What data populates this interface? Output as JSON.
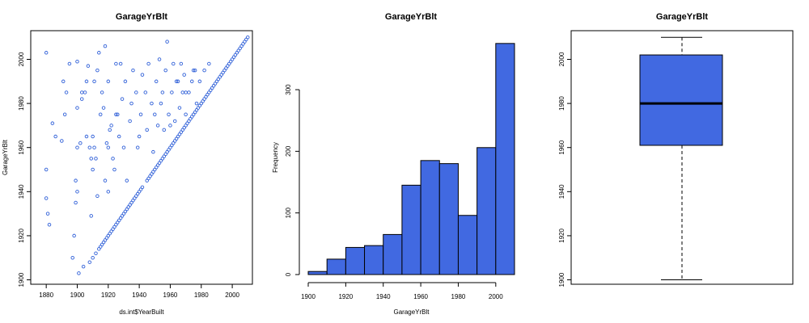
{
  "chart_data": [
    {
      "type": "scatter",
      "title": "GarageYrBlt",
      "xlabel": "ds.int$YearBuilt",
      "ylabel": "GarageYrBlt",
      "xlim": [
        1870,
        2013
      ],
      "ylim": [
        1898,
        2013
      ],
      "xticks": [
        1880,
        1900,
        1920,
        1940,
        1960,
        1980,
        2000
      ],
      "yticks": [
        1900,
        1920,
        1940,
        1960,
        1980,
        2000
      ],
      "grid": false,
      "marker": "open-circle",
      "color": "#3060d8",
      "points": [
        [
          1880,
          1950
        ],
        [
          1880,
          1937
        ],
        [
          1880,
          2003
        ],
        [
          1881,
          1930
        ],
        [
          1882,
          1925
        ],
        [
          1884,
          1971
        ],
        [
          1886,
          1965
        ],
        [
          1890,
          1963
        ],
        [
          1891,
          1990
        ],
        [
          1892,
          1975
        ],
        [
          1893,
          1985
        ],
        [
          1895,
          1998
        ],
        [
          1897,
          1910
        ],
        [
          1898,
          1920
        ],
        [
          1899,
          1935
        ],
        [
          1899,
          1945
        ],
        [
          1900,
          1960
        ],
        [
          1900,
          1940
        ],
        [
          1900,
          1978
        ],
        [
          1900,
          1999
        ],
        [
          1901,
          1903
        ],
        [
          1902,
          1962
        ],
        [
          1903,
          1982
        ],
        [
          1904,
          1906
        ],
        [
          1905,
          1985
        ],
        [
          1906,
          1990
        ],
        [
          1907,
          1997
        ],
        [
          1908,
          1908
        ],
        [
          1909,
          1955
        ],
        [
          1909,
          1929
        ],
        [
          1910,
          1950
        ],
        [
          1910,
          1965
        ],
        [
          1910,
          1910
        ],
        [
          1911,
          1990
        ],
        [
          1912,
          1912
        ],
        [
          1913,
          1938
        ],
        [
          1914,
          1914
        ],
        [
          1915,
          1915
        ],
        [
          1915,
          1975
        ],
        [
          1916,
          1916
        ],
        [
          1917,
          1917
        ],
        [
          1918,
          1945
        ],
        [
          1918,
          1918
        ],
        [
          1919,
          1919
        ],
        [
          1920,
          1920
        ],
        [
          1920,
          1940
        ],
        [
          1920,
          1960
        ],
        [
          1920,
          1990
        ],
        [
          1921,
          1921
        ],
        [
          1922,
          1922
        ],
        [
          1922,
          1970
        ],
        [
          1923,
          1923
        ],
        [
          1924,
          1924
        ],
        [
          1924,
          1950
        ],
        [
          1925,
          1925
        ],
        [
          1925,
          1975
        ],
        [
          1926,
          1926
        ],
        [
          1927,
          1927
        ],
        [
          1928,
          1928
        ],
        [
          1928,
          1998
        ],
        [
          1929,
          1929
        ],
        [
          1930,
          1930
        ],
        [
          1930,
          1960
        ],
        [
          1931,
          1931
        ],
        [
          1932,
          1932
        ],
        [
          1933,
          1933
        ],
        [
          1934,
          1934
        ],
        [
          1935,
          1935
        ],
        [
          1935,
          1980
        ],
        [
          1936,
          1936
        ],
        [
          1937,
          1937
        ],
        [
          1938,
          1938
        ],
        [
          1939,
          1939
        ],
        [
          1940,
          1940
        ],
        [
          1940,
          1965
        ],
        [
          1941,
          1941
        ],
        [
          1942,
          1942
        ],
        [
          1945,
          1945
        ],
        [
          1946,
          1946
        ],
        [
          1947,
          1947
        ],
        [
          1948,
          1948
        ],
        [
          1949,
          1949
        ],
        [
          1950,
          1950
        ],
        [
          1950,
          1975
        ],
        [
          1951,
          1951
        ],
        [
          1952,
          1952
        ],
        [
          1953,
          1953
        ],
        [
          1954,
          1954
        ],
        [
          1955,
          1955
        ],
        [
          1955,
          1985
        ],
        [
          1956,
          1956
        ],
        [
          1957,
          1957
        ],
        [
          1958,
          1958
        ],
        [
          1959,
          1959
        ],
        [
          1960,
          1960
        ],
        [
          1960,
          1970
        ],
        [
          1961,
          1961
        ],
        [
          1962,
          1962
        ],
        [
          1963,
          1963
        ],
        [
          1964,
          1964
        ],
        [
          1965,
          1965
        ],
        [
          1965,
          1990
        ],
        [
          1966,
          1966
        ],
        [
          1967,
          1967
        ],
        [
          1968,
          1968
        ],
        [
          1969,
          1969
        ],
        [
          1970,
          1970
        ],
        [
          1970,
          1985
        ],
        [
          1971,
          1971
        ],
        [
          1972,
          1972
        ],
        [
          1973,
          1973
        ],
        [
          1974,
          1974
        ],
        [
          1975,
          1975
        ],
        [
          1975,
          1995
        ],
        [
          1976,
          1976
        ],
        [
          1977,
          1977
        ],
        [
          1978,
          1978
        ],
        [
          1979,
          1979
        ],
        [
          1980,
          1980
        ],
        [
          1981,
          1981
        ],
        [
          1982,
          1982
        ],
        [
          1983,
          1983
        ],
        [
          1984,
          1984
        ],
        [
          1985,
          1985
        ],
        [
          1986,
          1986
        ],
        [
          1987,
          1987
        ],
        [
          1988,
          1988
        ],
        [
          1989,
          1989
        ],
        [
          1990,
          1990
        ],
        [
          1991,
          1991
        ],
        [
          1992,
          1992
        ],
        [
          1993,
          1993
        ],
        [
          1994,
          1994
        ],
        [
          1995,
          1995
        ],
        [
          1996,
          1996
        ],
        [
          1997,
          1997
        ],
        [
          1998,
          1998
        ],
        [
          1999,
          1999
        ],
        [
          2000,
          2000
        ],
        [
          2001,
          2001
        ],
        [
          2002,
          2002
        ],
        [
          2003,
          2003
        ],
        [
          2004,
          2004
        ],
        [
          2005,
          2005
        ],
        [
          2006,
          2006
        ],
        [
          2007,
          2007
        ],
        [
          2008,
          2008
        ],
        [
          2009,
          2009
        ],
        [
          2010,
          2010
        ],
        [
          1908,
          1960
        ],
        [
          1912,
          1955
        ],
        [
          1914,
          2003
        ],
        [
          1916,
          1985
        ],
        [
          1918,
          2006
        ],
        [
          1919,
          1962
        ],
        [
          1921,
          1968
        ],
        [
          1923,
          1955
        ],
        [
          1925,
          1998
        ],
        [
          1926,
          1975
        ],
        [
          1927,
          1965
        ],
        [
          1929,
          1982
        ],
        [
          1931,
          1990
        ],
        [
          1932,
          1945
        ],
        [
          1934,
          1972
        ],
        [
          1936,
          1995
        ],
        [
          1938,
          1985
        ],
        [
          1939,
          1960
        ],
        [
          1941,
          1975
        ],
        [
          1942,
          1993
        ],
        [
          1944,
          1985
        ],
        [
          1945,
          1968
        ],
        [
          1946,
          1998
        ],
        [
          1948,
          1980
        ],
        [
          1949,
          1958
        ],
        [
          1951,
          1990
        ],
        [
          1952,
          1970
        ],
        [
          1953,
          2000
        ],
        [
          1954,
          1980
        ],
        [
          1956,
          1968
        ],
        [
          1957,
          1995
        ],
        [
          1958,
          2008
        ],
        [
          1959,
          1975
        ],
        [
          1961,
          1985
        ],
        [
          1962,
          1998
        ],
        [
          1963,
          1972
        ],
        [
          1964,
          1990
        ],
        [
          1966,
          1978
        ],
        [
          1967,
          1998
        ],
        [
          1968,
          1985
        ],
        [
          1969,
          1993
        ],
        [
          1970,
          1975
        ],
        [
          1972,
          1985
        ],
        [
          1974,
          1990
        ],
        [
          1976,
          1995
        ],
        [
          1977,
          1980
        ],
        [
          1979,
          1990
        ],
        [
          1982,
          1995
        ],
        [
          1985,
          1998
        ],
        [
          1917,
          1978
        ],
        [
          1913,
          1995
        ],
        [
          1911,
          1960
        ],
        [
          1906,
          1965
        ],
        [
          1903,
          1985
        ]
      ]
    },
    {
      "type": "bar",
      "title": "GarageYrBlt",
      "xlabel": "GarageYrBlt",
      "ylabel": "Frequency",
      "xlim": [
        1900,
        2010
      ],
      "ylim": [
        0,
        380
      ],
      "xticks": [
        1900,
        1920,
        1940,
        1960,
        1980,
        2000
      ],
      "yticks": [
        0,
        100,
        200,
        300
      ],
      "bin_edges": [
        1900,
        1910,
        1920,
        1930,
        1940,
        1950,
        1960,
        1970,
        1980,
        1990,
        2000,
        2010
      ],
      "values": [
        5,
        25,
        44,
        47,
        65,
        145,
        185,
        180,
        96,
        206,
        375
      ],
      "color": "#4169e1"
    },
    {
      "type": "box",
      "title": "GarageYrBlt",
      "ylim": [
        1898,
        2013
      ],
      "yticks": [
        1900,
        1920,
        1940,
        1960,
        1980,
        2000
      ],
      "min": 1900,
      "q1": 1961,
      "median": 1980,
      "q3": 2002,
      "max": 2010,
      "color": "#4169e1"
    }
  ]
}
